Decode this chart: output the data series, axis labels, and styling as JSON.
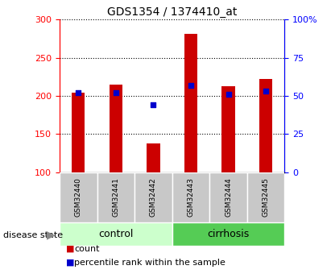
{
  "title": "GDS1354 / 1374410_at",
  "samples": [
    "GSM32440",
    "GSM32441",
    "GSM32442",
    "GSM32443",
    "GSM32444",
    "GSM32445"
  ],
  "counts": [
    204,
    215,
    138,
    281,
    213,
    222
  ],
  "percentile_ranks": [
    52,
    52,
    44,
    57,
    51,
    53
  ],
  "groups": [
    "control",
    "control",
    "control",
    "cirrhosis",
    "cirrhosis",
    "cirrhosis"
  ],
  "ylim_left": [
    100,
    300
  ],
  "yticks_left": [
    100,
    150,
    200,
    250,
    300
  ],
  "ylim_right": [
    0,
    100
  ],
  "yticks_right": [
    0,
    25,
    50,
    75,
    100
  ],
  "bar_color": "#cc0000",
  "dot_color": "#0000cc",
  "bar_width": 0.35,
  "control_color": "#ccffcc",
  "cirrhosis_color": "#55cc55",
  "label_bg_color": "#c8c8c8",
  "title_fontsize": 10,
  "tick_label_fontsize": 8,
  "legend_count_color": "#cc0000",
  "legend_pct_color": "#0000cc"
}
